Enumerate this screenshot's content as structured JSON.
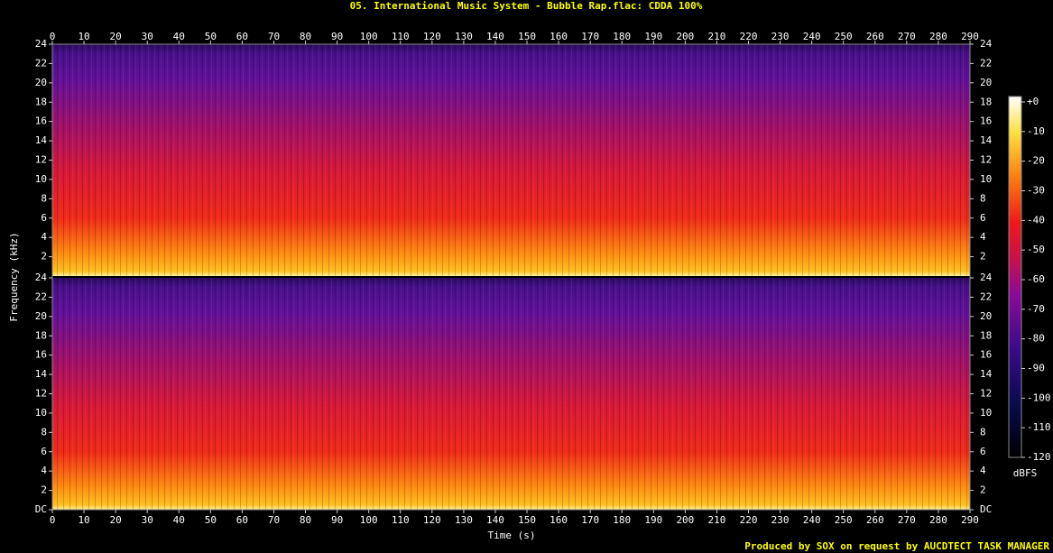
{
  "chart_data": {
    "type": "spectrogram",
    "title": "05. International Music System - Bubble Rap.flac: CDDA 100%",
    "x_label": "Time (s)",
    "y_label": "Frequency (kHz)",
    "xlim": [
      0,
      290
    ],
    "xticks": [
      0,
      10,
      20,
      30,
      40,
      50,
      60,
      70,
      80,
      90,
      100,
      110,
      120,
      130,
      140,
      150,
      160,
      170,
      180,
      190,
      200,
      210,
      220,
      230,
      240,
      250,
      260,
      270,
      280,
      290
    ],
    "channels": [
      {
        "ylim": [
          0,
          24
        ],
        "yticks": [
          2,
          4,
          6,
          8,
          10,
          12,
          14,
          16,
          18,
          20,
          22,
          24
        ]
      },
      {
        "ylim": [
          0,
          24
        ],
        "yticks": [
          {
            "value": 0,
            "label": "DC"
          },
          2,
          4,
          6,
          8,
          10,
          12,
          14,
          16,
          18,
          20,
          22,
          24
        ]
      }
    ],
    "colorbar": {
      "label": "dBFS",
      "lim": [
        -120,
        0
      ],
      "ticks": [
        {
          "value": 0,
          "label": "+0"
        },
        -10,
        -20,
        -30,
        -40,
        -50,
        -60,
        -70,
        -80,
        -90,
        -100,
        -110,
        -120
      ]
    },
    "footer": "Produced by SOX on request by AUCDTECT TASK MANAGER"
  }
}
